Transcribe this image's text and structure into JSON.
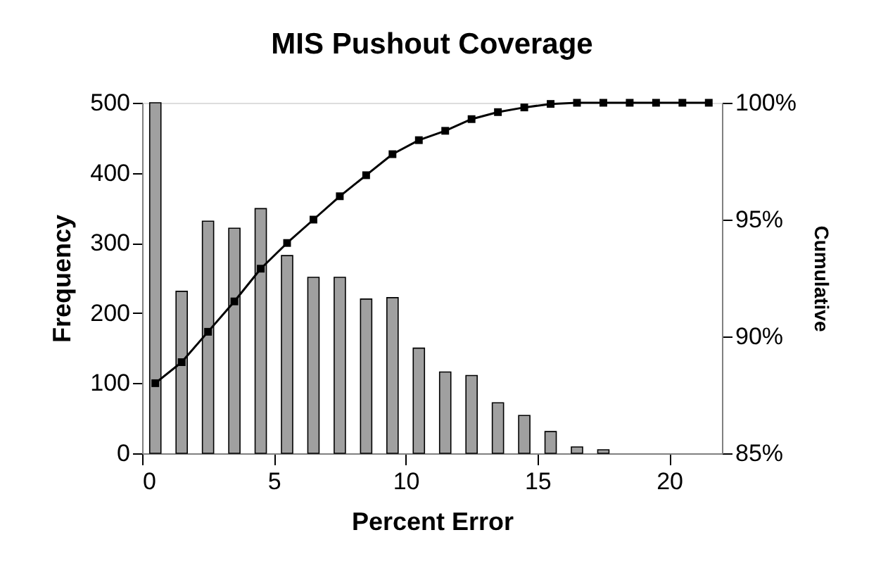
{
  "chart_data": {
    "type": "bar",
    "title": "MIS Pushout Coverage",
    "xlabel": "Percent Error",
    "ylabel": "Frequency",
    "y2label": "Cumulative",
    "x": [
      0.5,
      1.5,
      2.5,
      3.5,
      4.5,
      5.5,
      6.5,
      7.5,
      8.5,
      9.5,
      10.5,
      11.5,
      12.5,
      13.5,
      14.5,
      15.5,
      16.5,
      17.5,
      18.5,
      19.5,
      20.5,
      21.5
    ],
    "series": [
      {
        "color": "#a0a0a0",
        "values": [
          500,
          231,
          331,
          321,
          349,
          282,
          251,
          251,
          220,
          222,
          150,
          116,
          111,
          72,
          54,
          31,
          9,
          5,
          0,
          0,
          0,
          0
        ]
      },
      {
        "type": "line",
        "axis": "y2",
        "color": "#000000",
        "values": [
          88.0,
          88.9,
          90.2,
          91.5,
          92.9,
          94.0,
          95.0,
          96.0,
          96.9,
          97.8,
          98.4,
          98.8,
          99.3,
          99.6,
          99.8,
          99.95,
          100,
          100,
          100,
          100,
          100,
          100
        ]
      }
    ],
    "xlim": [
      0,
      22
    ],
    "xticks": [
      0,
      5,
      10,
      15,
      20
    ],
    "ylim": [
      0,
      500
    ],
    "yticks": [
      0,
      100,
      200,
      300,
      400,
      500
    ],
    "y2lim": [
      85,
      100
    ],
    "y2ticks": [
      {
        "value": 85,
        "label": "85%"
      },
      {
        "value": 90,
        "label": "90%"
      },
      {
        "value": 95,
        "label": "95%"
      },
      {
        "value": 100,
        "label": "100%"
      }
    ],
    "marker": "square",
    "line_style": "solid",
    "grid": false,
    "legend": false
  }
}
